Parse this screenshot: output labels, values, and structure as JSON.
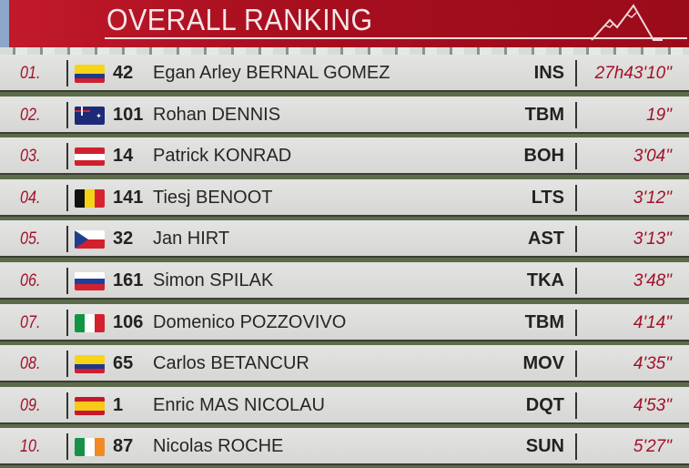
{
  "header": {
    "title": "OVERALL RANKING",
    "logo_icon": "mountain-icon"
  },
  "colors": {
    "accent": "#a80f1f",
    "rank_text": "#a3112a"
  },
  "rankings": [
    {
      "rank": "01.",
      "flag": "colombia",
      "number": "42",
      "name": "Egan Arley BERNAL GOMEZ",
      "team": "INS",
      "time": "27h43'10\""
    },
    {
      "rank": "02.",
      "flag": "australia",
      "number": "101",
      "name": "Rohan DENNIS",
      "team": "TBM",
      "time": "19\""
    },
    {
      "rank": "03.",
      "flag": "austria",
      "number": "14",
      "name": "Patrick KONRAD",
      "team": "BOH",
      "time": "3'04\""
    },
    {
      "rank": "04.",
      "flag": "belgium",
      "number": "141",
      "name": "Tiesj BENOOT",
      "team": "LTS",
      "time": "3'12\""
    },
    {
      "rank": "05.",
      "flag": "czech-republic",
      "number": "32",
      "name": "Jan HIRT",
      "team": "AST",
      "time": "3'13\""
    },
    {
      "rank": "06.",
      "flag": "slovenia",
      "number": "161",
      "name": "Simon SPILAK",
      "team": "TKA",
      "time": "3'48\""
    },
    {
      "rank": "07.",
      "flag": "italy",
      "number": "106",
      "name": "Domenico POZZOVIVO",
      "team": "TBM",
      "time": "4'14\""
    },
    {
      "rank": "08.",
      "flag": "colombia",
      "number": "65",
      "name": "Carlos BETANCUR",
      "team": "MOV",
      "time": "4'35\""
    },
    {
      "rank": "09.",
      "flag": "spain",
      "number": "1",
      "name": "Enric MAS NICOLAU",
      "team": "DQT",
      "time": "4'53\""
    },
    {
      "rank": "10.",
      "flag": "ireland",
      "number": "87",
      "name": "Nicolas ROCHE",
      "team": "SUN",
      "time": "5'27\""
    }
  ]
}
